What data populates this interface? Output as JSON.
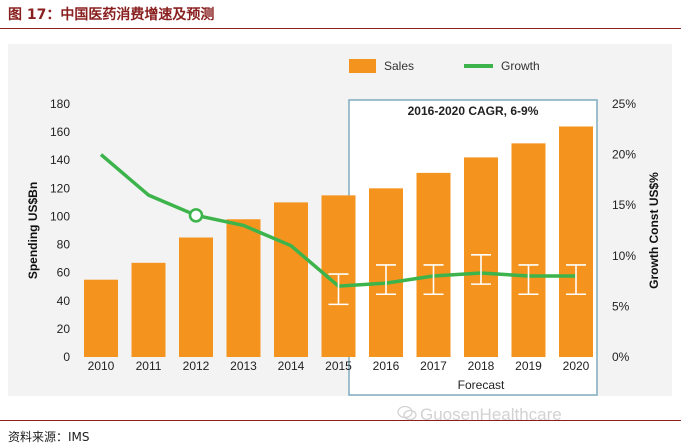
{
  "figure_title": "图 17：中国医药消费增速及预测",
  "source_note": "资料来源：IMS",
  "watermark": "GuosenHealthcare",
  "colors": {
    "bars": "#f5931f",
    "growth_line": "#3cb44b",
    "forecast_box": "#7eabbf",
    "panel_bg": "#f3f3f3",
    "title": "#8a1f1f"
  },
  "chart_data": {
    "type": "bar",
    "categories": [
      "2010",
      "2011",
      "2012",
      "2013",
      "2014",
      "2015",
      "2016",
      "2017",
      "2018",
      "2019",
      "2020"
    ],
    "series": [
      {
        "name": "Sales",
        "type": "bar",
        "axis": "left",
        "values": [
          55,
          67,
          85,
          98,
          110,
          115,
          120,
          131,
          142,
          152,
          164
        ]
      },
      {
        "name": "Growth",
        "type": "line",
        "axis": "right",
        "values": [
          20,
          16,
          14,
          13,
          11,
          7,
          7.3,
          8,
          8.3,
          8,
          8
        ],
        "error_low": [
          null,
          null,
          null,
          null,
          null,
          5.2,
          6.2,
          6.2,
          7.2,
          6.2,
          6.2
        ],
        "error_high": [
          null,
          null,
          null,
          null,
          null,
          8.2,
          9.1,
          9.1,
          10.1,
          9.1,
          9.1
        ]
      }
    ],
    "ylabel": "Spending US$Bn",
    "ylim": [
      0,
      180
    ],
    "yticks": [
      "0",
      "20",
      "40",
      "60",
      "80",
      "100",
      "120",
      "140",
      "160",
      "180"
    ],
    "y2label": "Growth Const US$%",
    "y2lim": [
      0,
      25
    ],
    "y2ticks": [
      "0%",
      "5%",
      "10%",
      "15%",
      "20%",
      "25%"
    ],
    "forecast": {
      "label": "Forecast",
      "annotation": "2016-2020 CAGR, 6-9%",
      "from": "2016",
      "to": "2020"
    },
    "highlight_point": {
      "x": "2012",
      "value": 14
    },
    "legend_position": "top"
  }
}
